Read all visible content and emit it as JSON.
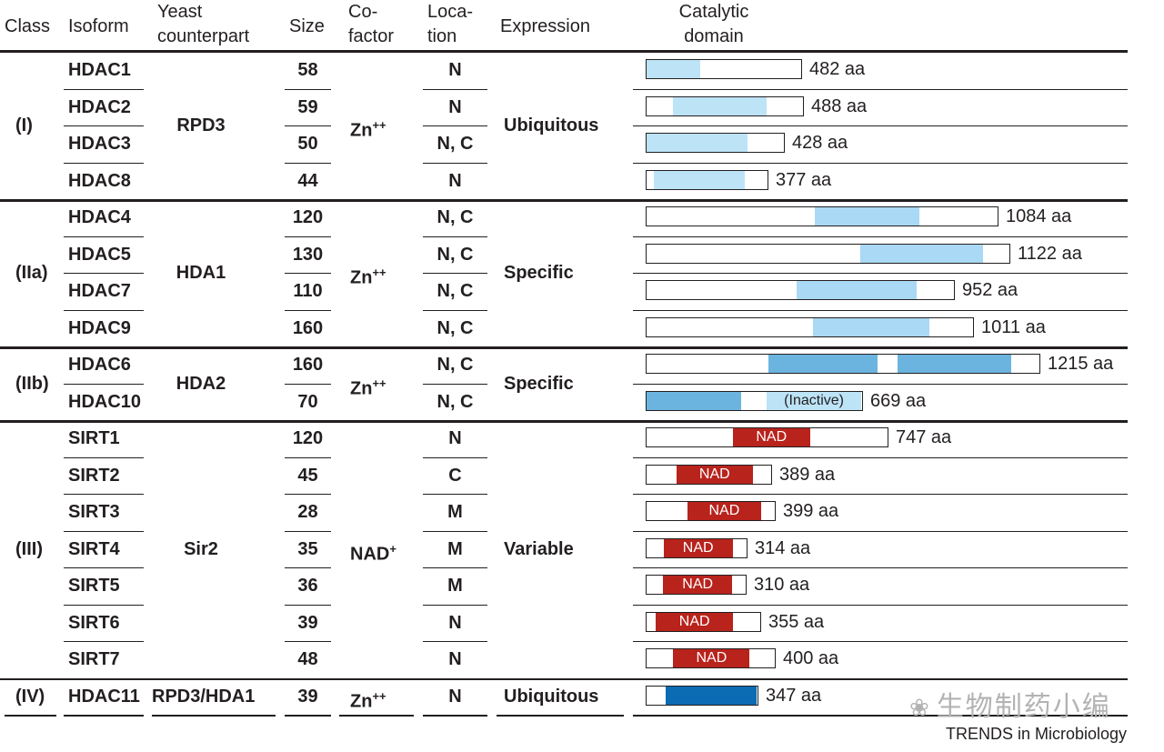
{
  "headers": {
    "class": "Class",
    "isoform": "Isoform",
    "yeast": "Yeast counterpart",
    "size": "Size",
    "cofactor": "Co- factor",
    "location": "Loca- tion",
    "expression": "Expression",
    "domain": "Catalytic domain"
  },
  "groups": [
    {
      "class": "(I)",
      "yeast": "RPD3",
      "cofactor": "Zn++",
      "expression": "Ubiquitous",
      "start": 0,
      "count": 4
    },
    {
      "class": "(IIa)",
      "yeast": "HDA1",
      "cofactor": "Zn++",
      "expression": "Specific",
      "start": 4,
      "count": 4
    },
    {
      "class": "(IIb)",
      "yeast": "HDA2",
      "cofactor": "Zn++",
      "expression": "Specific",
      "start": 8,
      "count": 2
    },
    {
      "class": "(III)",
      "yeast": "Sir2",
      "cofactor": "NAD+",
      "expression": "Variable",
      "start": 10,
      "count": 7
    },
    {
      "class": "(IV)",
      "yeast": "RPD3/HDA1",
      "cofactor": "Zn++",
      "expression": "Ubiquitous",
      "start": 17,
      "count": 1
    }
  ],
  "rows": [
    {
      "isoform": "HDAC1",
      "size": "58",
      "location": "N",
      "length": "482 aa",
      "aa": 482,
      "segments": [
        {
          "start": 0,
          "end": 0.35,
          "color": "#bde3f7"
        }
      ]
    },
    {
      "isoform": "HDAC2",
      "size": "59",
      "location": "N",
      "length": "488 aa",
      "aa": 488,
      "segments": [
        {
          "start": 0.17,
          "end": 0.77,
          "color": "#bde3f7"
        }
      ]
    },
    {
      "isoform": "HDAC3",
      "size": "50",
      "location": "N, C",
      "length": "428 aa",
      "aa": 428,
      "segments": [
        {
          "start": 0,
          "end": 0.74,
          "color": "#bde3f7"
        }
      ]
    },
    {
      "isoform": "HDAC8",
      "size": "44",
      "location": "N",
      "length": "377 aa",
      "aa": 377,
      "segments": [
        {
          "start": 0.06,
          "end": 0.82,
          "color": "#bde3f7"
        }
      ]
    },
    {
      "isoform": "HDAC4",
      "size": "120",
      "location": "N, C",
      "length": "1084 aa",
      "aa": 1084,
      "segments": [
        {
          "start": 0.48,
          "end": 0.78,
          "color": "#a9d9f4"
        }
      ]
    },
    {
      "isoform": "HDAC5",
      "size": "130",
      "location": "N, C",
      "length": "1122 aa",
      "aa": 1122,
      "segments": [
        {
          "start": 0.59,
          "end": 0.93,
          "color": "#a9d9f4"
        }
      ]
    },
    {
      "isoform": "HDAC7",
      "size": "110",
      "location": "N, C",
      "length": "952 aa",
      "aa": 952,
      "segments": [
        {
          "start": 0.49,
          "end": 0.88,
          "color": "#a9d9f4"
        }
      ]
    },
    {
      "isoform": "HDAC9",
      "size": "160",
      "location": "N, C",
      "length": "1011 aa",
      "aa": 1011,
      "segments": [
        {
          "start": 0.51,
          "end": 0.87,
          "color": "#a9d9f4"
        }
      ]
    },
    {
      "isoform": "HDAC6",
      "size": "160",
      "location": "N, C",
      "length": "1215 aa",
      "aa": 1215,
      "segments": [
        {
          "start": 0.31,
          "end": 0.59,
          "color": "#6cb4e0"
        },
        {
          "start": 0.64,
          "end": 0.93,
          "color": "#6cb4e0"
        }
      ]
    },
    {
      "isoform": "HDAC10",
      "size": "70",
      "location": "N, C",
      "length": "669 aa",
      "aa": 669,
      "segments": [
        {
          "start": 0,
          "end": 0.44,
          "color": "#6cb4e0"
        },
        {
          "start": 0.56,
          "end": 1.0,
          "color": "#bde3f7",
          "text": "(Inactive)",
          "dark": true
        }
      ]
    },
    {
      "isoform": "SIRT1",
      "size": "120",
      "location": "N",
      "length": "747 aa",
      "aa": 747,
      "segments": [
        {
          "start": 0.36,
          "end": 0.68,
          "color": "#b8231c",
          "text": "NAD"
        }
      ]
    },
    {
      "isoform": "SIRT2",
      "size": "45",
      "location": "C",
      "length": "389 aa",
      "aa": 389,
      "segments": [
        {
          "start": 0.24,
          "end": 0.86,
          "color": "#b8231c",
          "text": "NAD"
        }
      ]
    },
    {
      "isoform": "SIRT3",
      "size": "28",
      "location": "M",
      "length": "399 aa",
      "aa": 399,
      "segments": [
        {
          "start": 0.32,
          "end": 0.9,
          "color": "#b8231c",
          "text": "NAD"
        }
      ]
    },
    {
      "isoform": "SIRT4",
      "size": "35",
      "location": "M",
      "length": "314 aa",
      "aa": 314,
      "segments": [
        {
          "start": 0.17,
          "end": 0.87,
          "color": "#b8231c",
          "text": "NAD"
        }
      ]
    },
    {
      "isoform": "SIRT5",
      "size": "36",
      "location": "M",
      "length": "310 aa",
      "aa": 310,
      "segments": [
        {
          "start": 0.17,
          "end": 0.87,
          "color": "#b8231c",
          "text": "NAD"
        }
      ]
    },
    {
      "isoform": "SIRT6",
      "size": "39",
      "location": "N",
      "length": "355 aa",
      "aa": 355,
      "segments": [
        {
          "start": 0.08,
          "end": 0.77,
          "color": "#b8231c",
          "text": "NAD"
        }
      ]
    },
    {
      "isoform": "SIRT7",
      "size": "48",
      "location": "N",
      "length": "400 aa",
      "aa": 400,
      "segments": [
        {
          "start": 0.21,
          "end": 0.81,
          "color": "#b8231c",
          "text": "NAD"
        }
      ]
    },
    {
      "isoform": "HDAC11",
      "size": "39",
      "location": "N",
      "length": "347 aa",
      "aa": 347,
      "segments": [
        {
          "start": 0.17,
          "end": 1.0,
          "color": "#0b6bb3"
        }
      ]
    }
  ],
  "watermark": "生物制药小编",
  "credit": "TRENDS in Microbiology"
}
